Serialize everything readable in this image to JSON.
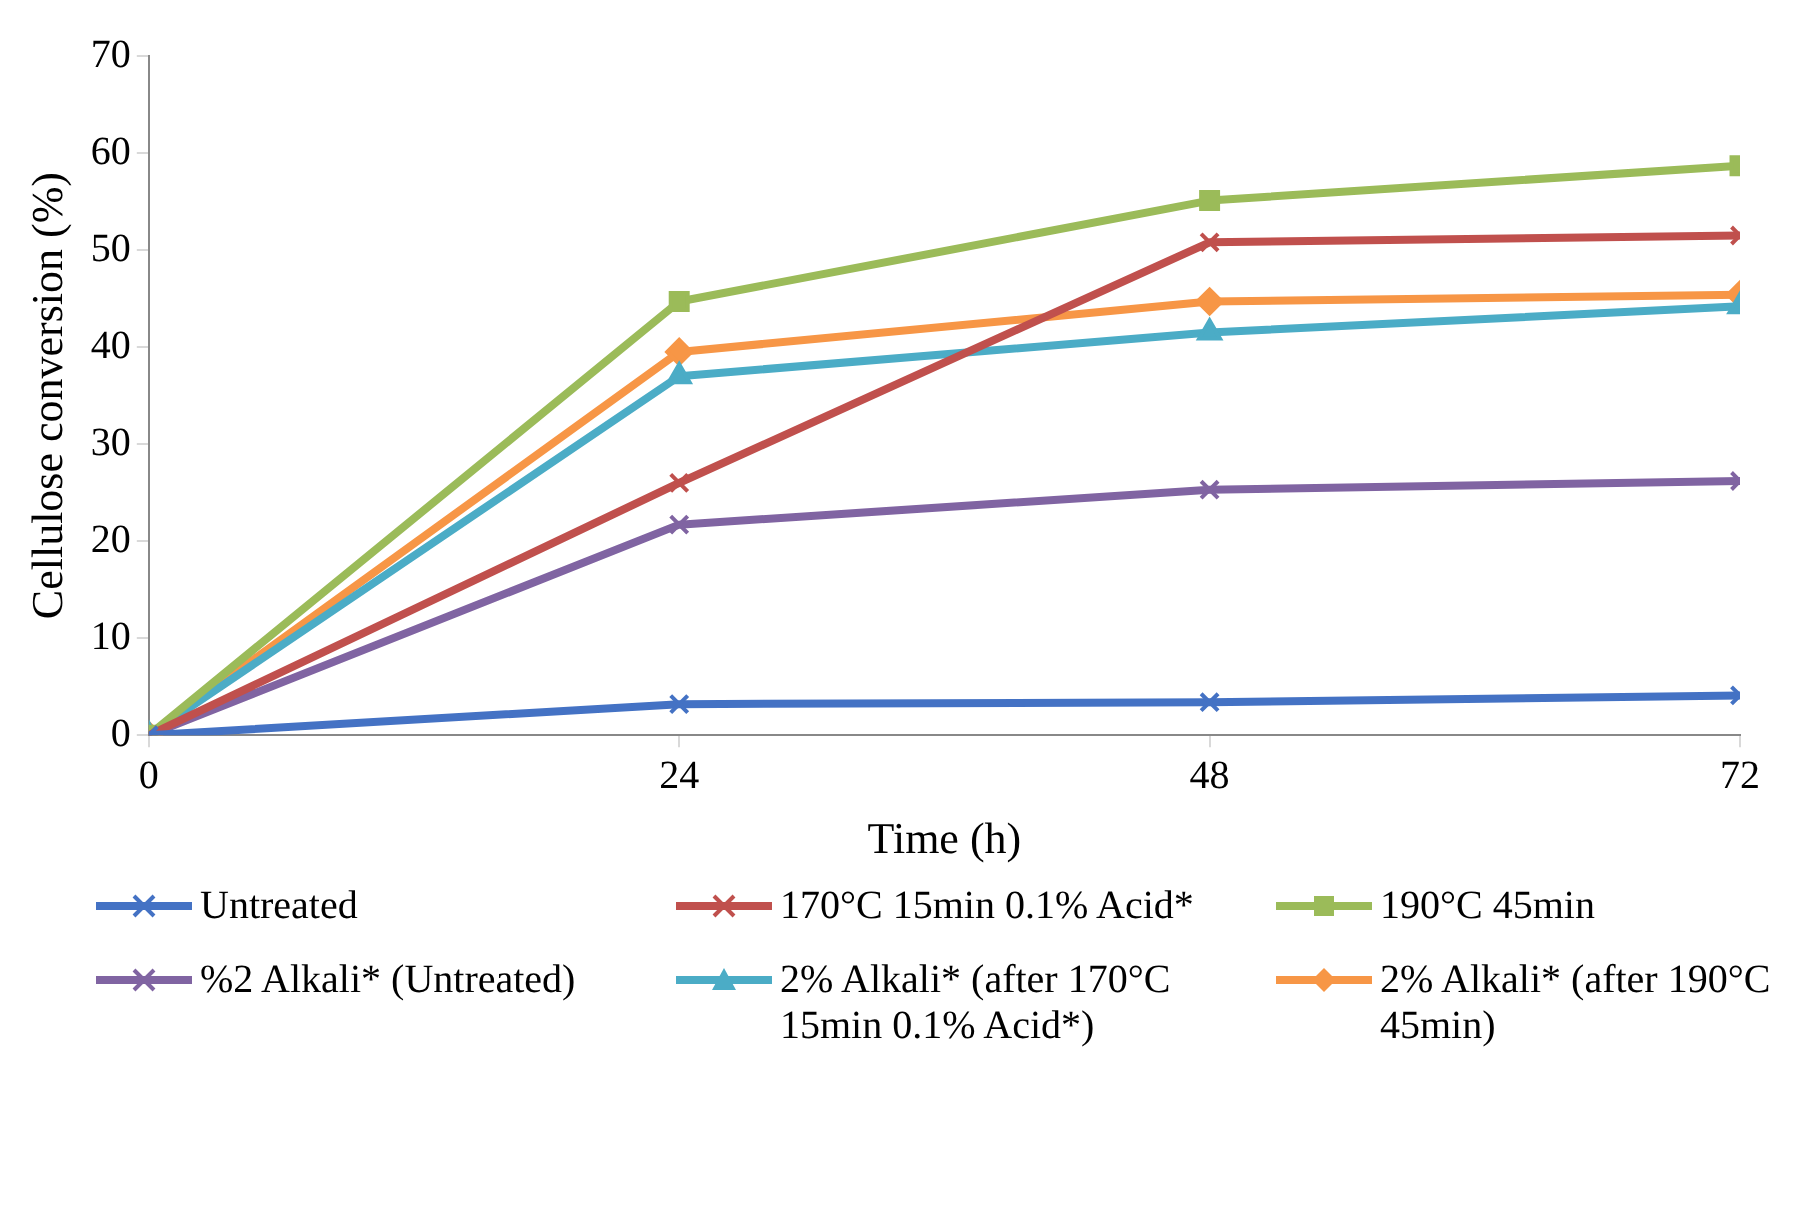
{
  "chart_data": {
    "type": "line",
    "xlabel": "Time (h)",
    "ylabel": "Cellulose conversion (%)",
    "x": [
      0,
      24,
      48,
      72
    ],
    "xlim": [
      0,
      72
    ],
    "xticks": [
      0,
      24,
      48,
      72
    ],
    "ylim": [
      0,
      70
    ],
    "yticks": [
      0,
      10,
      20,
      30,
      40,
      50,
      60,
      70
    ],
    "grid": false,
    "legend": "bottom",
    "series": [
      {
        "name": "Untreated",
        "color": "#4472c4",
        "marker": "cross",
        "values": [
          0,
          3.2,
          3.4,
          4.1
        ]
      },
      {
        "name": "170°C 15min 0.1% Acid*",
        "color": "#c0504d",
        "marker": "cross",
        "values": [
          0,
          26,
          50.8,
          51.5
        ]
      },
      {
        "name": "190°C 45min",
        "color": "#9bbb59",
        "marker": "square",
        "values": [
          0,
          44.7,
          55.1,
          58.7
        ]
      },
      {
        "name": "%2 Alkali* (Untreated)",
        "color": "#8064a2",
        "marker": "cross",
        "values": [
          0,
          21.7,
          25.3,
          26.2
        ]
      },
      {
        "name": "2% Alkali* (after 170°C 15min 0.1% Acid*)",
        "color": "#4bacc6",
        "marker": "triangle",
        "values": [
          0,
          37,
          41.5,
          44.2
        ]
      },
      {
        "name": "2% Alkali* (after 190°C 45min)",
        "color": "#f79646",
        "marker": "diamond",
        "values": [
          0,
          39.5,
          44.7,
          45.4
        ]
      }
    ]
  }
}
